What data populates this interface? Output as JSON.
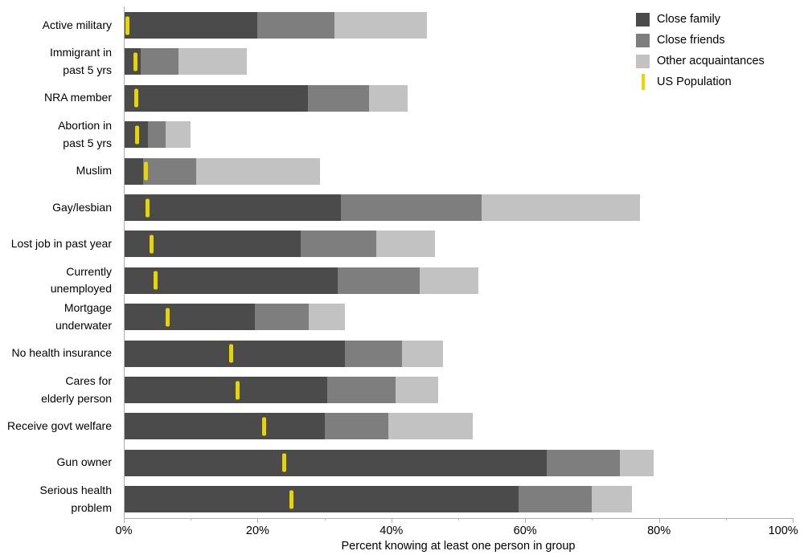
{
  "chart_data": {
    "type": "bar",
    "orientation": "horizontal",
    "stacked": true,
    "xlabel": "Percent knowing at least one person in group",
    "xlim": [
      0,
      100
    ],
    "x_major_ticks": [
      {
        "value": 0,
        "label": "0%"
      },
      {
        "value": 20,
        "label": "20%"
      },
      {
        "value": 40,
        "label": "40%"
      },
      {
        "value": 60,
        "label": "60%"
      },
      {
        "value": 80,
        "label": "80%"
      },
      {
        "value": 100,
        "label": "100%"
      }
    ],
    "x_minor_ticks": [
      10,
      30,
      50,
      70,
      90
    ],
    "legend": [
      {
        "label": "Close family",
        "color": "#4b4b4b",
        "marker": "square"
      },
      {
        "label": "Close friends",
        "color": "#7e7e7e",
        "marker": "square"
      },
      {
        "label": "Other acquaintances",
        "color": "#c2c2c2",
        "marker": "square"
      },
      {
        "label": "US Population",
        "color": "#e8d500",
        "marker": "vertical-tick"
      }
    ],
    "series_keys": [
      "close_family",
      "close_friends",
      "other_acquaintances"
    ],
    "colors": {
      "close_family": "#4b4b4b",
      "close_friends": "#7e7e7e",
      "other_acquaintances": "#c2c2c2",
      "us_population": "#e8d500"
    },
    "rows": [
      {
        "label": "Active military",
        "close_family": 20,
        "close_friends": 11.5,
        "other_acquaintances": 13.8,
        "us_population": 0.6
      },
      {
        "label": "Immigrant in\npast 5 yrs",
        "close_family": 2.5,
        "close_friends": 5.7,
        "other_acquaintances": 10.2,
        "us_population": 1.8
      },
      {
        "label": "NRA member",
        "close_family": 27.5,
        "close_friends": 9.1,
        "other_acquaintances": 5.8,
        "us_population": 1.9
      },
      {
        "label": "Abortion in\npast 5 yrs",
        "close_family": 3.6,
        "close_friends": 2.6,
        "other_acquaintances": 3.8,
        "us_population": 2.0
      },
      {
        "label": "Muslim",
        "close_family": 2.9,
        "close_friends": 7.9,
        "other_acquaintances": 18.5,
        "us_population": 3.3
      },
      {
        "label": "Gay/lesbian",
        "close_family": 32.5,
        "close_friends": 21.0,
        "other_acquaintances": 23.7,
        "us_population": 3.5
      },
      {
        "label": "Lost job in past year",
        "close_family": 26.5,
        "close_friends": 11.3,
        "other_acquaintances": 8.7,
        "us_population": 4.2
      },
      {
        "label": "Currently\nunemployed",
        "close_family": 32,
        "close_friends": 12.2,
        "other_acquaintances": 8.8,
        "us_population": 4.7
      },
      {
        "label": "Mortgage\nunderwater",
        "close_family": 19.6,
        "close_friends": 8.0,
        "other_acquaintances": 5.5,
        "us_population": 6.6
      },
      {
        "label": "No health insurance",
        "close_family": 33,
        "close_friends": 8.6,
        "other_acquaintances": 6.1,
        "us_population": 16
      },
      {
        "label": "Cares for\nelderly person",
        "close_family": 30.4,
        "close_friends": 10.2,
        "other_acquaintances": 6.4,
        "us_population": 17
      },
      {
        "label": "Receive govt welfare",
        "close_family": 30,
        "close_friends": 9.6,
        "other_acquaintances": 12.6,
        "us_population": 21
      },
      {
        "label": "Gun owner",
        "close_family": 63.2,
        "close_friends": 11.0,
        "other_acquaintances": 5.0,
        "us_population": 24
      },
      {
        "label": "Serious health\nproblem",
        "close_family": 59,
        "close_friends": 11.0,
        "other_acquaintances": 6.0,
        "us_population": 25
      }
    ]
  }
}
